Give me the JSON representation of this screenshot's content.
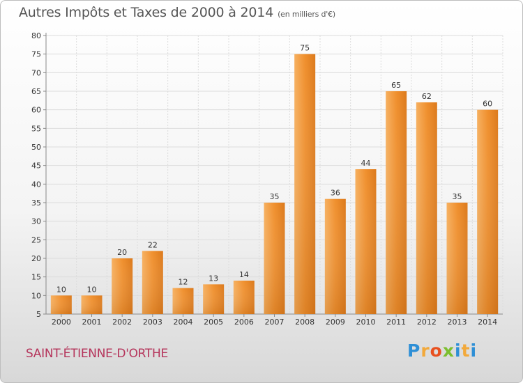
{
  "header": {
    "title": "Autres Impôts et Taxes de 2000 à 2014",
    "subtitle": "(en milliers d'€)"
  },
  "commune": "SAINT-ÉTIENNE-D'ORTHE",
  "brand": {
    "letters": [
      "P",
      "r",
      "o",
      "x",
      "i",
      "t",
      "i"
    ],
    "colors": [
      "#2e8fd6",
      "#f2a93b",
      "#e8501f",
      "#7cbf2f",
      "#2e8fd6",
      "#f2a93b",
      "#2e8fd6"
    ]
  },
  "chart_data": {
    "type": "bar",
    "categories": [
      "2000",
      "2001",
      "2002",
      "2003",
      "2004",
      "2005",
      "2006",
      "2007",
      "2008",
      "2009",
      "2010",
      "2011",
      "2012",
      "2013",
      "2014"
    ],
    "values": [
      10,
      10,
      20,
      22,
      12,
      13,
      14,
      35,
      75,
      36,
      44,
      65,
      62,
      35,
      60
    ],
    "ylim": [
      5,
      80
    ],
    "yticks": [
      5,
      10,
      15,
      20,
      25,
      30,
      35,
      40,
      45,
      50,
      55,
      60,
      65,
      70,
      75,
      80
    ],
    "bar_color": "#f0902e",
    "grid": true
  }
}
